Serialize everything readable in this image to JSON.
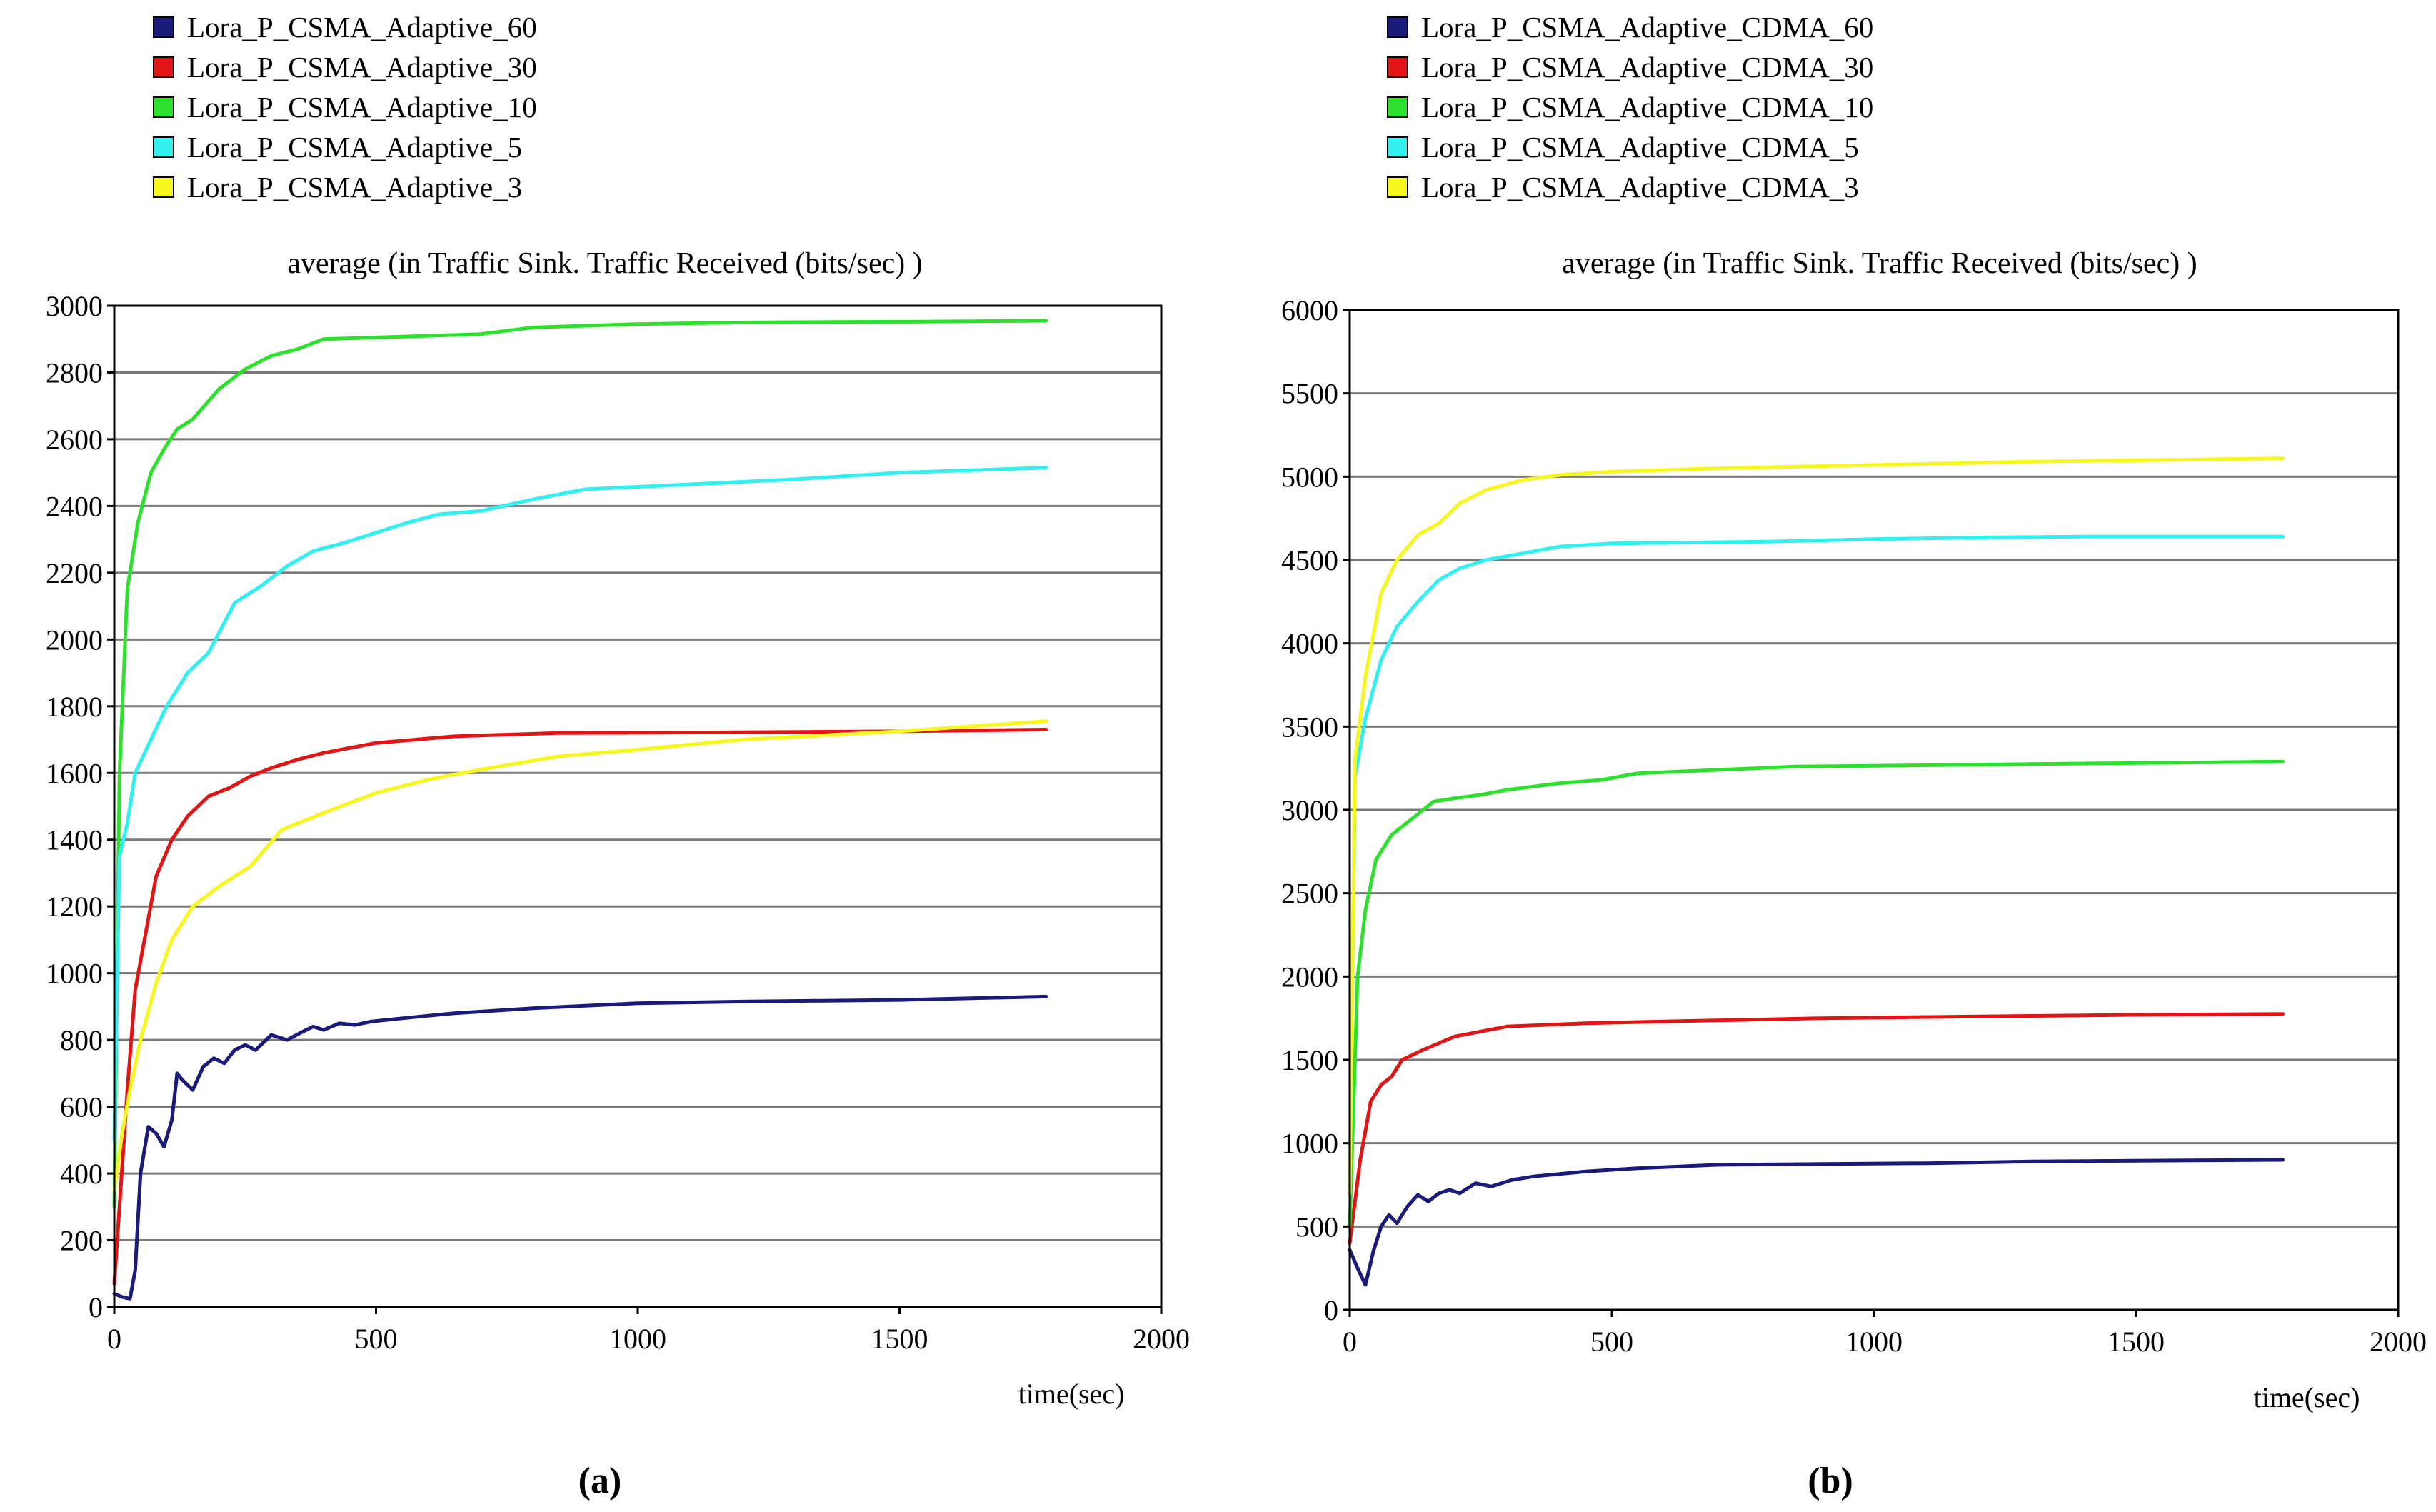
{
  "chart_data": [
    {
      "type": "line",
      "panel_label": "(a)",
      "title": "average (in  Traffic  Sink.  Traffic  Received (bits/sec) )",
      "xlabel": "time(sec)",
      "ylabel": "",
      "xlim": [
        0,
        2000
      ],
      "ylim": [
        0,
        3000
      ],
      "x_ticks": [
        "0",
        "500",
        "1000",
        "1500",
        "2000"
      ],
      "y_ticks": [
        "0",
        "200",
        "400",
        "600",
        "800",
        "1000",
        "1200",
        "1400",
        "1600",
        "1800",
        "2000",
        "2200",
        "2400",
        "2600",
        "2800",
        "3000"
      ],
      "grid": true,
      "legend_position": "top-left",
      "series": [
        {
          "name": "Lora_P_CSMA_Adaptive_60",
          "color": "#1a1a7a",
          "points": [
            [
              0,
              40
            ],
            [
              15,
              30
            ],
            [
              30,
              25
            ],
            [
              40,
              110
            ],
            [
              50,
              400
            ],
            [
              65,
              540
            ],
            [
              80,
              520
            ],
            [
              95,
              480
            ],
            [
              110,
              560
            ],
            [
              120,
              700
            ],
            [
              130,
              680
            ],
            [
              150,
              650
            ],
            [
              170,
              720
            ],
            [
              190,
              745
            ],
            [
              210,
              730
            ],
            [
              230,
              770
            ],
            [
              250,
              785
            ],
            [
              270,
              770
            ],
            [
              300,
              815
            ],
            [
              330,
              800
            ],
            [
              360,
              825
            ],
            [
              380,
              840
            ],
            [
              400,
              830
            ],
            [
              430,
              850
            ],
            [
              460,
              845
            ],
            [
              490,
              855
            ],
            [
              550,
              865
            ],
            [
              650,
              880
            ],
            [
              800,
              895
            ],
            [
              1000,
              910
            ],
            [
              1200,
              915
            ],
            [
              1500,
              920
            ],
            [
              1780,
              930
            ]
          ]
        },
        {
          "name": "Lora_P_CSMA_Adaptive_30",
          "color": "#e01515",
          "points": [
            [
              0,
              70
            ],
            [
              10,
              300
            ],
            [
              25,
              650
            ],
            [
              40,
              950
            ],
            [
              60,
              1120
            ],
            [
              80,
              1290
            ],
            [
              110,
              1400
            ],
            [
              140,
              1470
            ],
            [
              180,
              1530
            ],
            [
              220,
              1555
            ],
            [
              260,
              1590
            ],
            [
              300,
              1615
            ],
            [
              350,
              1640
            ],
            [
              400,
              1660
            ],
            [
              500,
              1690
            ],
            [
              650,
              1710
            ],
            [
              850,
              1720
            ],
            [
              1200,
              1722
            ],
            [
              1500,
              1725
            ],
            [
              1780,
              1730
            ]
          ]
        },
        {
          "name": "Lora_P_CSMA_Adaptive_10",
          "color": "#2ee02e",
          "points": [
            [
              0,
              300
            ],
            [
              10,
              1600
            ],
            [
              25,
              2150
            ],
            [
              45,
              2350
            ],
            [
              70,
              2500
            ],
            [
              95,
              2570
            ],
            [
              120,
              2630
            ],
            [
              150,
              2660
            ],
            [
              200,
              2750
            ],
            [
              250,
              2810
            ],
            [
              300,
              2850
            ],
            [
              350,
              2870
            ],
            [
              400,
              2900
            ],
            [
              500,
              2905
            ],
            [
              600,
              2910
            ],
            [
              700,
              2915
            ],
            [
              800,
              2935
            ],
            [
              1000,
              2945
            ],
            [
              1200,
              2950
            ],
            [
              1500,
              2952
            ],
            [
              1780,
              2955
            ]
          ]
        },
        {
          "name": "Lora_P_CSMA_Adaptive_5",
          "color": "#33f0f0",
          "points": [
            [
              0,
              500
            ],
            [
              10,
              1350
            ],
            [
              25,
              1450
            ],
            [
              40,
              1600
            ],
            [
              70,
              1700
            ],
            [
              100,
              1800
            ],
            [
              140,
              1900
            ],
            [
              180,
              1960
            ],
            [
              230,
              2110
            ],
            [
              280,
              2160
            ],
            [
              330,
              2220
            ],
            [
              380,
              2265
            ],
            [
              440,
              2290
            ],
            [
              500,
              2320
            ],
            [
              560,
              2350
            ],
            [
              620,
              2375
            ],
            [
              700,
              2385
            ],
            [
              800,
              2420
            ],
            [
              900,
              2450
            ],
            [
              1100,
              2465
            ],
            [
              1300,
              2480
            ],
            [
              1500,
              2500
            ],
            [
              1780,
              2515
            ]
          ]
        },
        {
          "name": "Lora_P_CSMA_Adaptive_3",
          "color": "#f7f720",
          "points": [
            [
              0,
              350
            ],
            [
              15,
              520
            ],
            [
              30,
              650
            ],
            [
              50,
              800
            ],
            [
              80,
              970
            ],
            [
              110,
              1100
            ],
            [
              150,
              1200
            ],
            [
              200,
              1260
            ],
            [
              260,
              1320
            ],
            [
              320,
              1430
            ],
            [
              400,
              1480
            ],
            [
              500,
              1540
            ],
            [
              600,
              1580
            ],
            [
              700,
              1610
            ],
            [
              850,
              1650
            ],
            [
              1000,
              1670
            ],
            [
              1200,
              1700
            ],
            [
              1500,
              1725
            ],
            [
              1780,
              1755
            ]
          ]
        }
      ]
    },
    {
      "type": "line",
      "panel_label": "(b)",
      "title": "average (in  Traffic  Sink.  Traffic  Received (bits/sec) )",
      "xlabel": "time(sec)",
      "ylabel": "",
      "xlim": [
        0,
        2000
      ],
      "ylim": [
        0,
        6000
      ],
      "x_ticks": [
        "0",
        "500",
        "1000",
        "1500",
        "2000"
      ],
      "y_ticks": [
        "0",
        "500",
        "1000",
        "1500",
        "2000",
        "2500",
        "3000",
        "3500",
        "4000",
        "4500",
        "5000",
        "5500",
        "6000"
      ],
      "grid": true,
      "legend_position": "top-left",
      "series": [
        {
          "name": "Lora_P_CSMA_Adaptive_CDMA_60",
          "color": "#1a1a7a",
          "points": [
            [
              0,
              360
            ],
            [
              15,
              250
            ],
            [
              30,
              150
            ],
            [
              45,
              350
            ],
            [
              60,
              500
            ],
            [
              75,
              570
            ],
            [
              90,
              520
            ],
            [
              110,
              620
            ],
            [
              130,
              690
            ],
            [
              150,
              650
            ],
            [
              170,
              700
            ],
            [
              190,
              720
            ],
            [
              210,
              700
            ],
            [
              240,
              760
            ],
            [
              270,
              740
            ],
            [
              310,
              780
            ],
            [
              350,
              800
            ],
            [
              450,
              830
            ],
            [
              550,
              850
            ],
            [
              700,
              870
            ],
            [
              900,
              875
            ],
            [
              1100,
              880
            ],
            [
              1300,
              890
            ],
            [
              1500,
              895
            ],
            [
              1780,
              900
            ]
          ]
        },
        {
          "name": "Lora_P_CSMA_Adaptive_CDMA_30",
          "color": "#e01515",
          "points": [
            [
              0,
              400
            ],
            [
              20,
              900
            ],
            [
              40,
              1250
            ],
            [
              60,
              1350
            ],
            [
              80,
              1400
            ],
            [
              100,
              1500
            ],
            [
              140,
              1560
            ],
            [
              200,
              1640
            ],
            [
              300,
              1700
            ],
            [
              450,
              1720
            ],
            [
              600,
              1730
            ],
            [
              900,
              1750
            ],
            [
              1200,
              1760
            ],
            [
              1500,
              1770
            ],
            [
              1780,
              1775
            ]
          ]
        },
        {
          "name": "Lora_P_CSMA_Adaptive_CDMA_10",
          "color": "#2ee02e",
          "points": [
            [
              0,
              500
            ],
            [
              15,
              2000
            ],
            [
              30,
              2400
            ],
            [
              50,
              2700
            ],
            [
              80,
              2850
            ],
            [
              120,
              2950
            ],
            [
              160,
              3050
            ],
            [
              200,
              3070
            ],
            [
              250,
              3090
            ],
            [
              300,
              3120
            ],
            [
              400,
              3160
            ],
            [
              480,
              3180
            ],
            [
              550,
              3220
            ],
            [
              700,
              3240
            ],
            [
              850,
              3260
            ],
            [
              1000,
              3265
            ],
            [
              1300,
              3275
            ],
            [
              1780,
              3290
            ]
          ]
        },
        {
          "name": "Lora_P_CSMA_Adaptive_CDMA_5",
          "color": "#33f0f0",
          "points": [
            [
              0,
              700
            ],
            [
              10,
              3200
            ],
            [
              30,
              3550
            ],
            [
              60,
              3900
            ],
            [
              90,
              4100
            ],
            [
              130,
              4250
            ],
            [
              170,
              4380
            ],
            [
              210,
              4450
            ],
            [
              260,
              4500
            ],
            [
              330,
              4540
            ],
            [
              400,
              4580
            ],
            [
              500,
              4600
            ],
            [
              650,
              4605
            ],
            [
              800,
              4610
            ],
            [
              1000,
              4625
            ],
            [
              1200,
              4635
            ],
            [
              1400,
              4640
            ],
            [
              1780,
              4640
            ]
          ]
        },
        {
          "name": "Lora_P_CSMA_Adaptive_CDMA_3",
          "color": "#f7f720",
          "points": [
            [
              0,
              700
            ],
            [
              10,
              3300
            ],
            [
              30,
              3800
            ],
            [
              60,
              4300
            ],
            [
              90,
              4500
            ],
            [
              130,
              4650
            ],
            [
              170,
              4720
            ],
            [
              210,
              4840
            ],
            [
              260,
              4920
            ],
            [
              330,
              4980
            ],
            [
              400,
              5010
            ],
            [
              500,
              5030
            ],
            [
              700,
              5050
            ],
            [
              1000,
              5070
            ],
            [
              1300,
              5090
            ],
            [
              1780,
              5110
            ]
          ]
        }
      ]
    }
  ]
}
